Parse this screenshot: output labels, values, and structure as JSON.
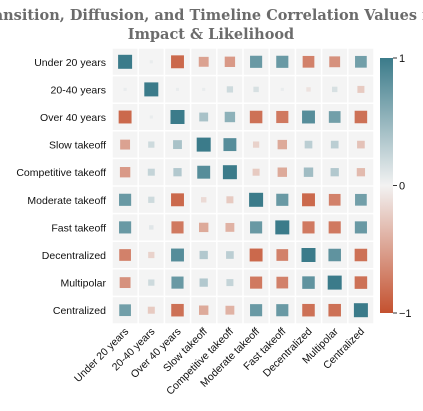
{
  "chart_data": {
    "type": "heatmap",
    "title_lines": [
      "Transition, Diffusion, and Timeline Correlation Values for",
      "Impact & Likelihood"
    ],
    "variables": [
      "Under 20 years",
      "20-40 years",
      "Over 40 years",
      "Slow takeoff",
      "Competitive takeoff",
      "Moderate takeoff",
      "Fast takeoff",
      "Decentralized",
      "Multipolar",
      "Centralized"
    ],
    "matrix": [
      [
        1.0,
        0.05,
        -0.85,
        -0.5,
        -0.55,
        0.75,
        0.75,
        -0.7,
        -0.6,
        0.7
      ],
      [
        0.05,
        1.0,
        0.05,
        0.05,
        0.2,
        0.15,
        0.05,
        -0.1,
        0.15,
        -0.25
      ],
      [
        -0.85,
        0.05,
        1.0,
        0.4,
        0.55,
        -0.8,
        -0.75,
        0.85,
        0.7,
        -0.8
      ],
      [
        -0.5,
        0.2,
        0.4,
        1.0,
        0.85,
        -0.2,
        -0.45,
        0.3,
        0.3,
        -0.3
      ],
      [
        -0.55,
        0.25,
        0.35,
        0.85,
        1.0,
        -0.25,
        -0.45,
        0.45,
        0.35,
        -0.35
      ],
      [
        0.75,
        0.2,
        -0.85,
        -0.15,
        -0.25,
        1.0,
        0.75,
        -0.85,
        -0.7,
        0.7
      ],
      [
        0.75,
        0.1,
        -0.75,
        -0.45,
        -0.4,
        0.75,
        1.0,
        -0.75,
        -0.75,
        0.75
      ],
      [
        -0.7,
        -0.2,
        0.85,
        0.35,
        0.3,
        -0.85,
        -0.7,
        1.0,
        0.8,
        -0.8
      ],
      [
        -0.6,
        0.2,
        0.75,
        0.35,
        0.25,
        -0.75,
        -0.7,
        0.8,
        1.0,
        -0.8
      ],
      [
        0.7,
        -0.25,
        -0.8,
        -0.45,
        -0.4,
        0.75,
        0.75,
        -0.8,
        -0.8,
        1.0
      ]
    ],
    "colorbar": {
      "min": -1,
      "max": 1,
      "ticks": [
        1,
        0,
        -1
      ],
      "tick_labels": [
        "1",
        "0",
        "−1"
      ]
    },
    "colors": {
      "positive": "#3b7b8a",
      "neutral": "#f2f2f2",
      "negative": "#c4512f"
    },
    "grid": true
  }
}
